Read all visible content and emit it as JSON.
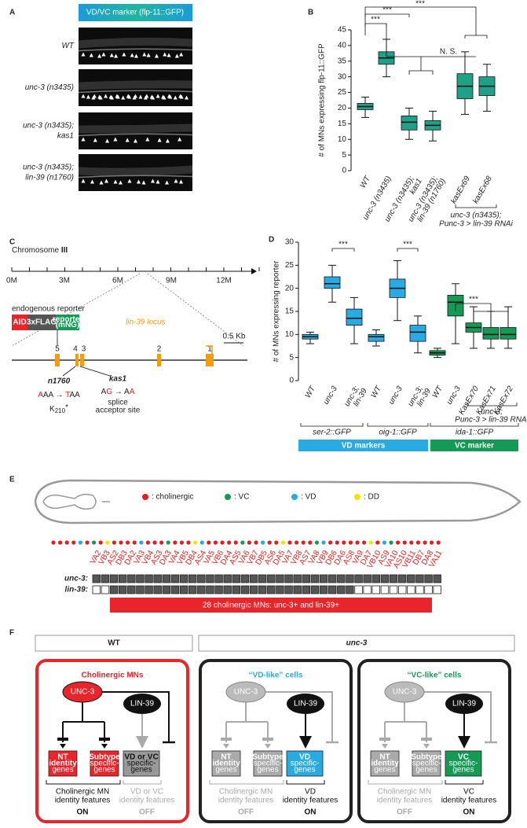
{
  "panel_labels": [
    "A",
    "B",
    "C",
    "D",
    "E",
    "F"
  ],
  "panel_a": {
    "header": "VD/VC marker (flp-11::GFP)",
    "rows": [
      [
        "WT"
      ],
      [
        "unc-3 (n3435)"
      ],
      [
        "unc-3 (n3435);",
        "kas1"
      ],
      [
        "unc-3 (n3435);",
        "lin-39 (n1760)"
      ]
    ]
  },
  "chart_data": [
    {
      "type": "box",
      "y_label": "# of MNs expressing flp-11::GFP",
      "categories": [
        [
          "WT"
        ],
        [
          "unc-3 (n3435)"
        ],
        [
          "unc-3 (n3435);",
          "kas1"
        ],
        [
          "unc-3 (n3435);",
          "lin-39 (n1760)"
        ],
        [
          "kasEx69"
        ],
        [
          "kasEx68"
        ]
      ],
      "boxes": [
        {
          "min": 17,
          "q1": 19.5,
          "median": 20.5,
          "q3": 21.5,
          "max": 23.5
        },
        {
          "min": 30,
          "q1": 34,
          "median": 36,
          "q3": 38,
          "max": 42
        },
        {
          "min": 10,
          "q1": 13,
          "median": 15.5,
          "q3": 17.5,
          "max": 20
        },
        {
          "min": 9.5,
          "q1": 13,
          "median": 14.5,
          "q3": 16,
          "max": 19
        },
        {
          "min": 18,
          "q1": 23,
          "median": 27,
          "q3": 31,
          "max": 38
        },
        {
          "min": 19,
          "q1": 24,
          "median": 27,
          "q3": 30,
          "max": 34
        }
      ],
      "colors": [
        "#1fa187",
        "#1fa187",
        "#1fa187",
        "#1fa187",
        "#1fa187",
        "#1fa187"
      ],
      "ylim": [
        0,
        45
      ],
      "yticks": [
        0,
        5,
        10,
        15,
        20,
        25,
        30,
        35,
        40,
        45
      ],
      "group_label": [
        "unc-3 (n3435);",
        "Punc-3 > lin-39 RNAi"
      ],
      "significance": [
        "***",
        "***",
        "***",
        "N. S."
      ]
    },
    {
      "type": "box",
      "y_label": "# of MNs expressing reporter",
      "categories": [
        [
          "WT"
        ],
        [
          "unc-3"
        ],
        [
          "unc-3;",
          "lin-39"
        ],
        [
          "WT"
        ],
        [
          "unc-3"
        ],
        [
          "unc-3;",
          "lin-39"
        ],
        [
          "WT"
        ],
        [
          "unc-3"
        ],
        [
          "KasEx70"
        ],
        [
          "KasEx71"
        ],
        [
          "KasEx72"
        ]
      ],
      "boxes": [
        {
          "min": 8,
          "q1": 9,
          "median": 9.5,
          "q3": 10,
          "max": 10.5
        },
        {
          "min": 17,
          "q1": 20,
          "median": 21,
          "q3": 22.5,
          "max": 25
        },
        {
          "min": 8,
          "q1": 12,
          "median": 13.5,
          "q3": 15.5,
          "max": 18
        },
        {
          "min": 7.5,
          "q1": 8.5,
          "median": 9.5,
          "q3": 10,
          "max": 11
        },
        {
          "min": 13,
          "q1": 18,
          "median": 20,
          "q3": 22,
          "max": 26
        },
        {
          "min": 6,
          "q1": 8.5,
          "median": 10.5,
          "q3": 12,
          "max": 14
        },
        {
          "min": 5,
          "q1": 5.5,
          "median": 6,
          "q3": 6.5,
          "max": 7
        },
        {
          "min": 8,
          "q1": 14,
          "median": 17,
          "q3": 18.5,
          "max": 21
        },
        {
          "min": 7,
          "q1": 10.5,
          "median": 11.5,
          "q3": 12.5,
          "max": 16
        },
        {
          "min": 7,
          "q1": 9,
          "median": 10,
          "q3": 11.5,
          "max": 15
        },
        {
          "min": 7,
          "q1": 9,
          "median": 10,
          "q3": 11.5,
          "max": 16
        }
      ],
      "colors": [
        "#29aae1",
        "#29aae1",
        "#29aae1",
        "#29aae1",
        "#29aae1",
        "#29aae1",
        "#159a55",
        "#159a55",
        "#159a55",
        "#159a55",
        "#159a55"
      ],
      "ylim": [
        0,
        30
      ],
      "yticks": [
        0,
        5,
        10,
        15,
        20,
        25,
        30
      ],
      "significance": [
        "***",
        "***",
        "***"
      ],
      "group_labels": [
        "ser-2::GFP",
        "oig-1::GFP",
        "ida-1::GFP"
      ],
      "rnai_label": [
        "unc-3;",
        "Punc-3 > lin-39 RNAi"
      ],
      "marker_bars": [
        {
          "label": "VD markers",
          "color": "#29aae1"
        },
        {
          "label": "VC marker",
          "color": "#159a55"
        }
      ]
    }
  ],
  "panel_c": {
    "chromosome": [
      "Chromosome ",
      "III"
    ],
    "scale_labels": [
      "0M",
      "3M",
      "6M",
      "9M",
      "12M"
    ],
    "reporter_title": "endogenous reporter",
    "reporter_parts": [
      [
        "AID"
      ],
      [
        "3xFLAG"
      ],
      [
        "reporter",
        "(mNG)"
      ]
    ],
    "locus": "lin-39 locus",
    "scale_bar": "0.5 Kb",
    "exons": [
      "5",
      "4",
      "3",
      "2",
      "1"
    ],
    "n1760": {
      "name": "n1760",
      "change": [
        {
          "text": "A",
          "color": "#e02020"
        },
        {
          "text": "AA → ",
          "color": "#222222"
        },
        {
          "text": "T",
          "color": "#e02020"
        },
        {
          "text": "AA",
          "color": "#222222"
        }
      ],
      "protein": [
        "K",
        "210",
        "*"
      ]
    },
    "kas1": {
      "name": "kas1",
      "change": [
        {
          "text": "A",
          "color": "#222222"
        },
        {
          "text": "G",
          "color": "#e02020"
        },
        {
          "text": " → A",
          "color": "#222222"
        },
        {
          "text": "A",
          "color": "#e02020"
        }
      ],
      "note": [
        "splice",
        "acceptor site"
      ]
    }
  },
  "panel_e": {
    "legend": [
      {
        "label": ": cholinergic",
        "color": "#e02020"
      },
      {
        "label": ": VC",
        "color": "#159a55"
      },
      {
        "label": ": VD",
        "color": "#29aae1"
      },
      {
        "label": ": DD",
        "color": "#f2e600"
      }
    ],
    "neurons": [
      "VA2",
      "VB3",
      "AS2",
      "DB3",
      "DA2",
      "VA3",
      "VB4",
      "AS3",
      "DA3",
      "VA4",
      "VB5",
      "DB4",
      "AS4",
      "VA5",
      "VB6",
      "DA4",
      "AS5",
      "VA6",
      "VB7",
      "DB5",
      "AS6",
      "DA5",
      "VA7",
      "VB8",
      "AS7",
      "VA8",
      "VB9",
      "DB6",
      "DA6",
      "AS8",
      "VA9",
      "DA7",
      "VB10",
      "AS9",
      "VA10",
      "AS10",
      "VB11",
      "DB7",
      "DA8",
      "VA11"
    ],
    "rows": [
      {
        "label": "unc-3:",
        "expressed": [
          1,
          1,
          1,
          1,
          1,
          1,
          1,
          1,
          1,
          1,
          1,
          1,
          1,
          1,
          1,
          1,
          1,
          1,
          1,
          1,
          1,
          1,
          1,
          1,
          1,
          1,
          1,
          1,
          1,
          1,
          1,
          1,
          1,
          1,
          1,
          1,
          1,
          1,
          1,
          1
        ]
      },
      {
        "label": "lin-39:",
        "expressed": [
          0,
          0,
          1,
          1,
          1,
          1,
          1,
          1,
          1,
          1,
          1,
          1,
          1,
          1,
          1,
          1,
          1,
          1,
          1,
          1,
          1,
          1,
          1,
          1,
          1,
          1,
          1,
          1,
          1,
          1,
          0,
          0,
          0,
          0,
          0,
          0,
          0,
          0,
          0,
          0
        ]
      }
    ],
    "bar": "28 cholinergic MNs: unc-3+ and lin-39+"
  },
  "panel_f": {
    "headers": [
      "WT",
      "unc-3"
    ],
    "boxes": [
      {
        "title": "Cholinergic MNs",
        "tf": [
          "UNC-3",
          "LIN-39"
        ],
        "targets": [
          [
            "NT",
            "identity",
            "genes"
          ],
          [
            "Subtype",
            "specific-",
            "genes"
          ],
          [
            "VD or VC",
            "specific-",
            "genes"
          ]
        ],
        "features": [
          [
            "Cholinergic MN",
            "identity features"
          ],
          [
            "VD or VC",
            "identity features"
          ]
        ],
        "states": [
          "ON",
          "OFF"
        ]
      },
      {
        "title": "“VD-like” cells",
        "tf": [
          "UNC-3",
          "LIN-39"
        ],
        "targets": [
          [
            "NT",
            "identity",
            "genes"
          ],
          [
            "Subtype",
            "specific-",
            "genes"
          ],
          [
            "VD",
            "specific-",
            "genes"
          ]
        ],
        "features": [
          [
            "Cholinergic MN",
            "identity features"
          ],
          [
            "VD",
            "identity features"
          ]
        ],
        "states": [
          "OFF",
          "ON"
        ]
      },
      {
        "title": "“VC-like” cells",
        "tf": [
          "UNC-3",
          "LIN-39"
        ],
        "targets": [
          [
            "NT",
            "identity",
            "genes"
          ],
          [
            "Subtype",
            "specific-",
            "genes"
          ],
          [
            "VC",
            "specific-",
            "genes"
          ]
        ],
        "features": [
          [
            "Cholinergic MN",
            "identity features"
          ],
          [
            "VC",
            "identity features"
          ]
        ],
        "states": [
          "OFF",
          "ON"
        ]
      }
    ]
  }
}
